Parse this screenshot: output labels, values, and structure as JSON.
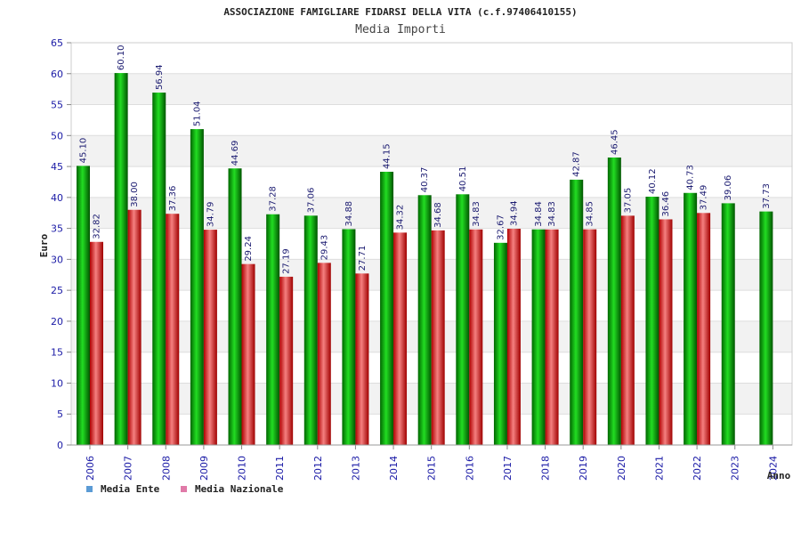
{
  "chart_data": {
    "type": "bar",
    "title": "ASSOCIAZIONE FAMIGLIARE FIDARSI DELLA VITA (c.f.97406410155)",
    "subtitle": "Media Importi",
    "xlabel": "Anno",
    "ylabel": "Euro",
    "ylim": [
      0,
      65
    ],
    "yticks": [
      0,
      5,
      10,
      15,
      20,
      25,
      30,
      35,
      40,
      45,
      50,
      55,
      60,
      65
    ],
    "grid": true,
    "legend_position": "bottom-left",
    "categories": [
      "2006",
      "2007",
      "2008",
      "2009",
      "2010",
      "2011",
      "2012",
      "2013",
      "2014",
      "2015",
      "2016",
      "2017",
      "2018",
      "2019",
      "2020",
      "2021",
      "2022",
      "2023",
      "2024"
    ],
    "series": [
      {
        "name": "Media Ente",
        "color": "#00bb00",
        "legend_color": "#5b9bd5",
        "values": [
          45.1,
          60.1,
          56.94,
          51.04,
          44.69,
          37.28,
          37.06,
          34.88,
          44.15,
          40.37,
          40.51,
          32.67,
          34.84,
          42.87,
          46.45,
          40.12,
          40.73,
          39.06,
          37.73
        ],
        "labels": [
          "45.10",
          "60.10",
          "56.94",
          "51.04",
          "44.69",
          "37.28",
          "37.06",
          "34.88",
          "44.15",
          "40.37",
          "40.51",
          "32.67",
          "34.84",
          "42.87",
          "46.45",
          "40.12",
          "40.73",
          "39.06",
          "37.73"
        ]
      },
      {
        "name": "Media Nazionale",
        "color": "#e83a3a",
        "legend_color": "#e07aa8",
        "values": [
          32.82,
          38.0,
          37.36,
          34.79,
          29.24,
          27.19,
          29.43,
          27.71,
          34.32,
          34.68,
          34.83,
          34.94,
          34.83,
          34.85,
          37.05,
          36.46,
          37.49,
          null,
          null
        ],
        "labels": [
          "32.82",
          "38.00",
          "37.36",
          "34.79",
          "29.24",
          "27.19",
          "29.43",
          "27.71",
          "34.32",
          "34.68",
          "34.83",
          "34.94",
          "34.83",
          "34.85",
          "37.05",
          "36.46",
          "37.49",
          null,
          null
        ]
      }
    ]
  }
}
